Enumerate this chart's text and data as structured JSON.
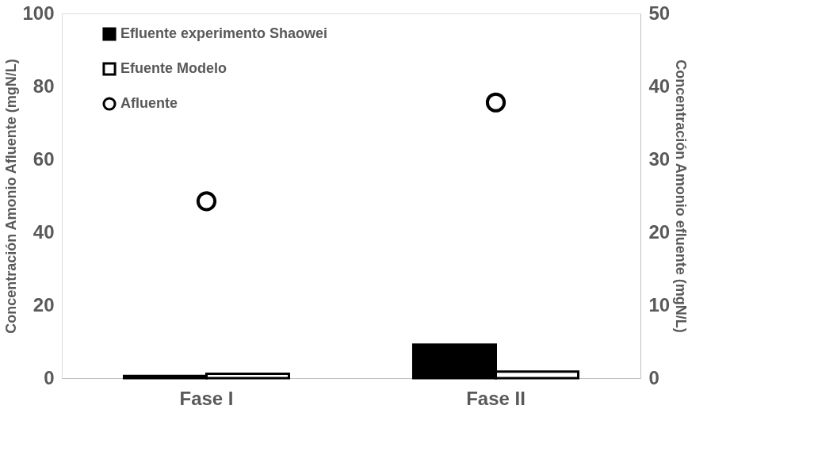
{
  "chart_data": {
    "type": "bar",
    "categories": [
      "Fase I",
      "Fase II"
    ],
    "ylabel": "Concentración Amonio Afluente (mgN/L)",
    "y2label": "Concentración Amonio efluente (mgN/L)",
    "ylim": [
      0,
      100
    ],
    "yticks": [
      0,
      20,
      40,
      60,
      80,
      100
    ],
    "y2lim": [
      0,
      50
    ],
    "y2ticks": [
      0,
      10,
      20,
      30,
      40,
      50
    ],
    "grid": false,
    "legend": "top left",
    "series": [
      {
        "name": "Efluente experimento Shaowei",
        "type": "bar",
        "axis": "y2",
        "color": "#000000",
        "values": [
          0.3,
          4.6
        ]
      },
      {
        "name": "Efuente Modelo",
        "type": "bar",
        "axis": "y2",
        "color": "#ffffff",
        "values": [
          0.6,
          0.9
        ]
      },
      {
        "name": "Afluente",
        "type": "scatter",
        "marker": "circle",
        "color": "#000000",
        "values": [
          48.5,
          75.6
        ]
      }
    ]
  }
}
